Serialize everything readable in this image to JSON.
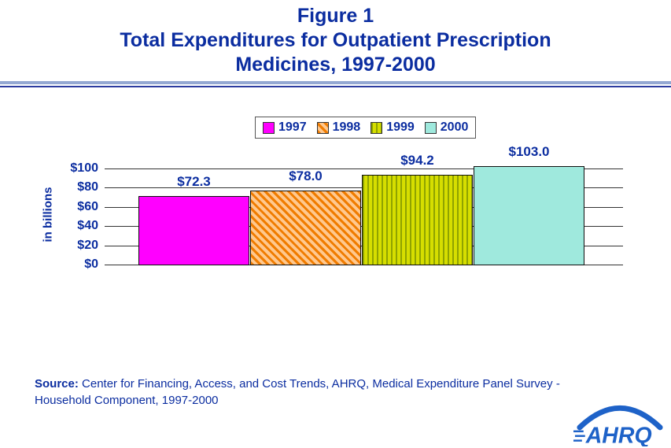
{
  "title": {
    "line1": "Figure 1",
    "line2": "Total Expenditures for Outpatient Prescription",
    "line3": "Medicines, 1997-2000"
  },
  "chart_data": {
    "type": "bar",
    "title": "Figure 1 - Total Expenditures for Outpatient Prescription Medicines, 1997-2000",
    "categories": [
      "1997",
      "1998",
      "1999",
      "2000"
    ],
    "values": [
      72.3,
      78.0,
      94.2,
      103.0
    ],
    "value_labels": [
      "$72.3",
      "$78.0",
      "$94.2",
      "$103.0"
    ],
    "xlabel": "",
    "ylabel": "in billions",
    "ylim": [
      0,
      100
    ],
    "ytick_values": [
      0,
      20,
      40,
      60,
      80,
      100
    ],
    "yticks": [
      "$0",
      "$20",
      "$40",
      "$60",
      "$80",
      "$100"
    ],
    "grid": "horizontal",
    "legend_position": "top"
  },
  "series_styles": [
    {
      "type": "solid",
      "color": "#ff00ff"
    },
    {
      "type": "diagonal",
      "fg": "#f07c00",
      "bg": "#ffc88e"
    },
    {
      "type": "vertical",
      "fg": "#8fa300",
      "bg": "#d6de00"
    },
    {
      "type": "solid",
      "color": "#9fe9dd"
    }
  ],
  "colors": {
    "heading": "#0b2da0",
    "grid": "#333333",
    "logo": "#1e62c8"
  },
  "source": {
    "label": "Source:",
    "line1_rest": " Center for Financing, Access, and Cost Trends, AHRQ, Medical Expenditure Panel Survey -",
    "line2": "Household Component, 1997-2000"
  },
  "logo": {
    "text": "AHRQ"
  }
}
